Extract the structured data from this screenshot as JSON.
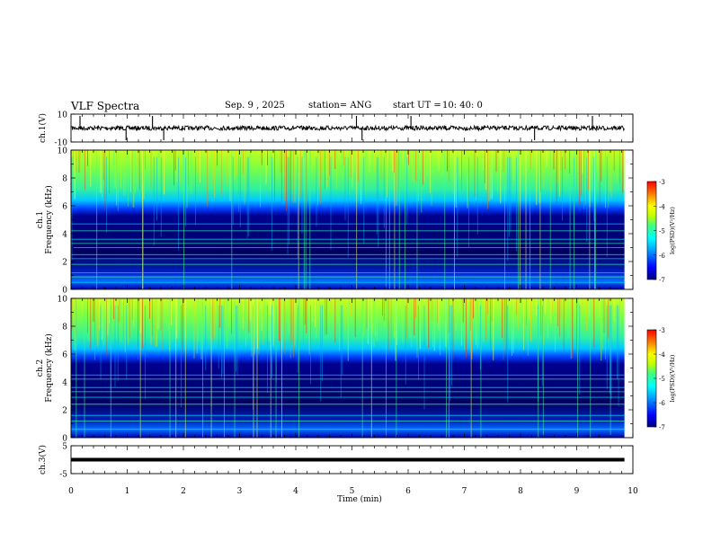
{
  "header": {
    "title": "VLF Spectra",
    "date": "Sep. 9 , 2025",
    "station": "station= ANG",
    "start_label": "start UT =",
    "start_time": "10: 40: 0"
  },
  "chart_data": [
    {
      "type": "line",
      "name": "ch1-waveform",
      "ylabel": "ch.1(V)",
      "ylim": [
        -10,
        10
      ],
      "yticks": [
        "10",
        "-10"
      ],
      "xlim": [
        0,
        10
      ],
      "baseline": 0,
      "spikes_min": [
        0.16,
        0.98,
        1.45,
        1.65,
        5.08,
        5.18,
        6.05,
        8.25,
        9.28
      ],
      "color": "#000000"
    },
    {
      "type": "heatmap",
      "name": "ch1-spectrogram",
      "ylabel_lines": [
        "ch.1",
        "Frequency (kHz)"
      ],
      "ylim": [
        0,
        10
      ],
      "yticks": [
        "0",
        "2",
        "4",
        "6",
        "8",
        "10"
      ],
      "xlim": [
        0,
        10
      ],
      "data_end_min": 9.85,
      "colorbar": {
        "label": "log(PSD)(V²/Hz)",
        "ticks": [
          "-3",
          "-4",
          "-5",
          "-6",
          "-7"
        ],
        "range": [
          -7,
          -3
        ]
      },
      "line_freqs_khz": [
        0.5,
        0.9,
        1.2,
        1.8,
        2.2,
        2.5,
        3.0,
        3.3,
        3.6,
        4.2,
        4.7
      ]
    },
    {
      "type": "heatmap",
      "name": "ch2-spectrogram",
      "ylabel_lines": [
        "ch.2",
        "Frequency (kHz)"
      ],
      "ylim": [
        0,
        10
      ],
      "yticks": [
        "0",
        "2",
        "4",
        "6",
        "8",
        "10"
      ],
      "xlim": [
        0,
        10
      ],
      "data_end_min": 9.85,
      "colorbar": {
        "label": "log(PSD)(V²/Hz)",
        "ticks": [
          "-3",
          "-4",
          "-5",
          "-6",
          "-7"
        ],
        "range": [
          -7,
          -3
        ]
      },
      "line_freqs_khz": [
        0.6,
        1.2,
        1.6,
        2.4,
        2.9,
        3.3,
        3.6,
        4.2,
        4.5
      ]
    },
    {
      "type": "line",
      "name": "ch3-waveform",
      "ylabel": "ch.3(V)",
      "ylim": [
        -5,
        5
      ],
      "yticks": [
        "5",
        "-5"
      ],
      "xlim": [
        0,
        10
      ],
      "baseline": 0,
      "color": "#000000"
    }
  ],
  "xaxis": {
    "label": "Time (min)",
    "ticks": [
      "0",
      "1",
      "2",
      "3",
      "4",
      "5",
      "6",
      "7",
      "8",
      "9",
      "10"
    ]
  }
}
